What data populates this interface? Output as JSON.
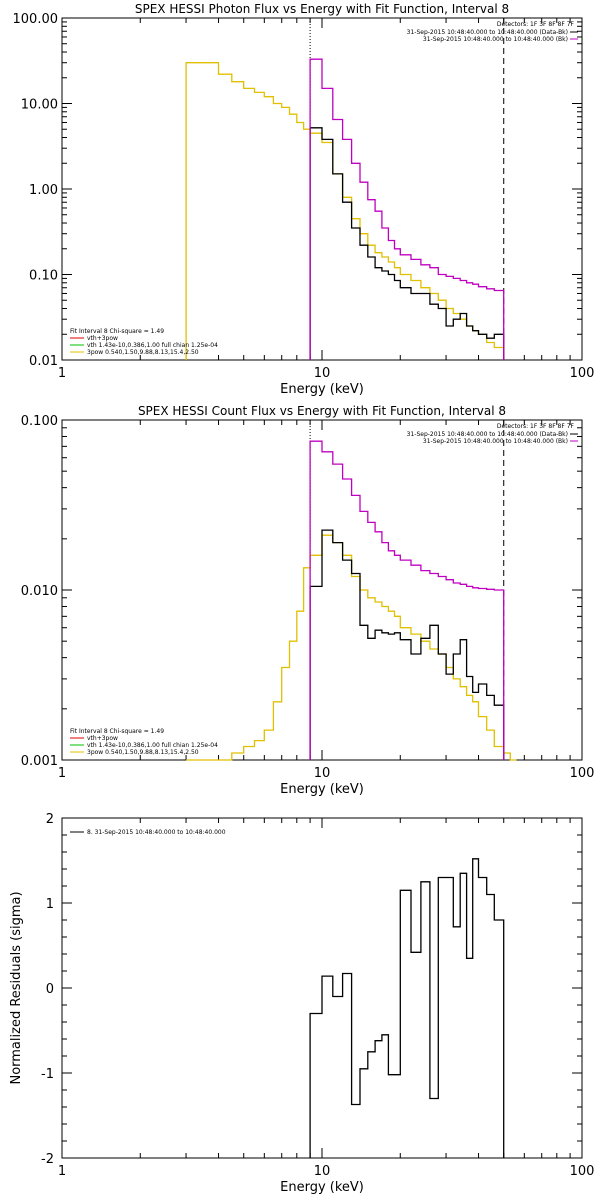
{
  "chart_data": [
    {
      "type": "line",
      "title": "SPEX HESSI Photon Flux vs Energy with Fit Function, Interval 8",
      "xlabel": "Energy (keV)",
      "ylabel": "",
      "xscale": "log",
      "yscale": "log",
      "xlim": [
        1,
        100
      ],
      "ylim": [
        0.01,
        100
      ],
      "xticks": [
        "1",
        "10",
        "100"
      ],
      "yticks": [
        "0.01",
        "0.10",
        "1.00",
        "10.00",
        "100.00"
      ],
      "detectors_label": "Detectors: 1F 3F 8F 8F 7F",
      "legend_right": [
        {
          "text": "31-Sep-2015 10:48:40.000 to 10:48:40.000 (Data-Bk)",
          "color": "#000000"
        },
        {
          "text": "31-Sep-2015 10:48:40.000 to 10:48:40.000 (Bk)",
          "color": "#c000c0"
        }
      ],
      "legend_left": [
        {
          "text": "Fit Interval 8   Chi-square = 1.49",
          "color": null
        },
        {
          "text": "vth+3pow",
          "color": "#e00000"
        },
        {
          "text": "vth 1.43e-10,0.386,1.00  full chian 1.25e-04",
          "color": "#00c000"
        },
        {
          "text": "3pow 0.540,1.50,9.88,8.13,15.4,2.50",
          "color": "#e0c000"
        }
      ],
      "vlines": [
        {
          "x": 9.0,
          "style": "dotted"
        },
        {
          "x": 50.0,
          "style": "dashed"
        }
      ],
      "series": [
        {
          "color": "#e0c000",
          "edges": [
            3.0,
            3.5,
            4.0,
            4.5,
            5.0,
            5.5,
            6.0,
            6.5,
            7.0,
            7.5,
            8.0,
            8.5,
            9.0,
            10.0,
            11.0,
            12.0,
            13.0,
            14.0,
            15.0,
            16.0,
            17.0,
            18.0,
            19.0,
            20.0,
            22.0,
            24.0,
            26.0,
            28.0,
            30.0,
            32.0,
            34.0,
            36.0,
            38.0,
            40.0,
            43.0,
            46.0,
            50.0
          ],
          "values": [
            30,
            30,
            22,
            18,
            15,
            13.5,
            12,
            10,
            9,
            7.5,
            6,
            5,
            4.5,
            3.5,
            1.5,
            0.8,
            0.45,
            0.3,
            0.22,
            0.18,
            0.16,
            0.14,
            0.12,
            0.1,
            0.085,
            0.07,
            0.06,
            0.05,
            0.04,
            0.035,
            0.03,
            0.025,
            0.022,
            0.02,
            0.016,
            0.014
          ]
        },
        {
          "color": "#000000",
          "edges": [
            9.0,
            10.0,
            11.0,
            12.0,
            13.0,
            14.0,
            15.0,
            16.0,
            17.0,
            18.0,
            19.0,
            20.0,
            22.0,
            24.0,
            26.0,
            28.0,
            30.0,
            32.0,
            34.0,
            36.0,
            38.0,
            40.0,
            43.0,
            46.0,
            50.0
          ],
          "values": [
            5.2,
            3.8,
            1.5,
            0.7,
            0.35,
            0.22,
            0.16,
            0.12,
            0.11,
            0.1,
            0.085,
            0.07,
            0.06,
            0.06,
            0.045,
            0.04,
            0.025,
            0.03,
            0.035,
            0.025,
            0.022,
            0.02,
            0.018,
            0.02
          ]
        },
        {
          "color": "#c000c0",
          "edges": [
            9.0,
            10.0,
            11.0,
            12.0,
            13.0,
            14.0,
            15.0,
            16.0,
            17.0,
            18.0,
            19.0,
            20.0,
            22.0,
            24.0,
            26.0,
            28.0,
            30.0,
            32.0,
            34.0,
            36.0,
            38.0,
            40.0,
            43.0,
            46.0,
            50.0
          ],
          "values": [
            33,
            15,
            6.5,
            3.8,
            2.0,
            1.2,
            0.75,
            0.55,
            0.35,
            0.25,
            0.2,
            0.17,
            0.15,
            0.13,
            0.12,
            0.1,
            0.095,
            0.09,
            0.085,
            0.08,
            0.077,
            0.072,
            0.068,
            0.065
          ]
        }
      ]
    },
    {
      "type": "line",
      "title": "SPEX HESSI Count Flux vs Energy with Fit Function, Interval 8",
      "xlabel": "Energy (keV)",
      "ylabel": "",
      "xscale": "log",
      "yscale": "log",
      "xlim": [
        1,
        100
      ],
      "ylim": [
        0.001,
        0.1
      ],
      "xticks": [
        "1",
        "10",
        "100"
      ],
      "yticks": [
        "0.001",
        "0.010",
        "0.100"
      ],
      "detectors_label": "Detectors: 1F 3F 8F 8F 7F",
      "legend_right": [
        {
          "text": "31-Sep-2015 10:48:40.000 to 10:48:40.000 (Data-Bk)",
          "color": "#000000"
        },
        {
          "text": "31-Sep-2015 10:48:40.000 to 10:48:40.000 (Bk)",
          "color": "#c000c0"
        }
      ],
      "legend_left": [
        {
          "text": "Fit Interval 8   Chi-square = 1.49",
          "color": null
        },
        {
          "text": "vth+3pow",
          "color": "#e00000"
        },
        {
          "text": "vth 1.43e-10,0.386,1.00  full chian 1.25e-04",
          "color": "#00c000"
        },
        {
          "text": "3pow 0.540,1.50,9.88,8.13,15.4,2.50",
          "color": "#e0c000"
        }
      ],
      "vlines": [
        {
          "x": 9.0,
          "style": "dotted"
        },
        {
          "x": 50.0,
          "style": "dashed"
        }
      ],
      "series": [
        {
          "color": "#e0c000",
          "edges": [
            3.0,
            3.5,
            4.0,
            4.5,
            5.0,
            5.5,
            6.0,
            6.5,
            7.0,
            7.5,
            8.0,
            8.5,
            9.0,
            10.0,
            11.0,
            12.0,
            13.0,
            14.0,
            15.0,
            16.0,
            17.0,
            18.0,
            19.0,
            20.0,
            22.0,
            24.0,
            26.0,
            28.0,
            30.0,
            32.0,
            34.0,
            36.0,
            38.0,
            40.0,
            43.0,
            46.0,
            50.0,
            53.0,
            56.0
          ],
          "values": [
            0.001,
            0.001,
            0.001,
            0.0011,
            0.0012,
            0.0013,
            0.0015,
            0.0022,
            0.0035,
            0.005,
            0.0075,
            0.0135,
            0.016,
            0.021,
            0.019,
            0.016,
            0.012,
            0.01,
            0.009,
            0.0085,
            0.008,
            0.0075,
            0.007,
            0.006,
            0.0055,
            0.005,
            0.0045,
            0.0042,
            0.0035,
            0.003,
            0.0027,
            0.0024,
            0.0022,
            0.0018,
            0.0015,
            0.0012,
            0.0011,
            0.001
          ]
        },
        {
          "color": "#000000",
          "edges": [
            9.0,
            10.0,
            11.0,
            12.0,
            13.0,
            14.0,
            15.0,
            16.0,
            17.0,
            18.0,
            19.0,
            20.0,
            22.0,
            24.0,
            26.0,
            28.0,
            30.0,
            32.0,
            34.0,
            36.0,
            38.0,
            40.0,
            43.0,
            46.0,
            50.0
          ],
          "values": [
            0.0105,
            0.0225,
            0.019,
            0.015,
            0.0125,
            0.0062,
            0.0052,
            0.0058,
            0.0056,
            0.0055,
            0.0056,
            0.0051,
            0.0042,
            0.0052,
            0.0062,
            0.0042,
            0.0032,
            0.0042,
            0.0051,
            0.0031,
            0.0025,
            0.0028,
            0.0024,
            0.0021
          ]
        },
        {
          "color": "#c000c0",
          "edges": [
            9.0,
            10.0,
            11.0,
            12.0,
            13.0,
            14.0,
            15.0,
            16.0,
            17.0,
            18.0,
            19.0,
            20.0,
            22.0,
            24.0,
            26.0,
            28.0,
            30.0,
            32.0,
            34.0,
            36.0,
            38.0,
            40.0,
            43.0,
            46.0,
            50.0
          ],
          "values": [
            0.075,
            0.065,
            0.055,
            0.045,
            0.036,
            0.029,
            0.025,
            0.022,
            0.019,
            0.017,
            0.016,
            0.015,
            0.014,
            0.013,
            0.0125,
            0.012,
            0.0115,
            0.011,
            0.0108,
            0.0105,
            0.0103,
            0.0102,
            0.0101,
            0.01
          ]
        }
      ]
    },
    {
      "type": "line",
      "title": "",
      "xlabel": "Energy (keV)",
      "ylabel": "Normalized Residuals (sigma)",
      "xscale": "log",
      "yscale": "linear",
      "xlim": [
        1,
        100
      ],
      "ylim": [
        -2,
        2
      ],
      "xticks": [
        "1",
        "10",
        "100"
      ],
      "yticks": [
        "-2",
        "-1",
        "0",
        "1",
        "2"
      ],
      "legend_left": [
        {
          "text": "8. 31-Sep-2015 10:48:40.000 to 10:48:40.000",
          "color": "#000000"
        }
      ],
      "series": [
        {
          "color": "#000000",
          "edges": [
            9.0,
            10.0,
            11.0,
            12.0,
            13.0,
            14.0,
            15.0,
            16.0,
            17.0,
            18.0,
            19.0,
            20.0,
            22.0,
            24.0,
            26.0,
            28.0,
            30.0,
            32.0,
            34.0,
            36.0,
            38.0,
            40.0,
            43.0,
            46.0,
            50.0
          ],
          "values": [
            -0.3,
            0.14,
            -0.1,
            0.17,
            -1.37,
            -0.95,
            -0.75,
            -0.62,
            -0.55,
            -1.02,
            -1.02,
            1.15,
            0.42,
            1.25,
            -1.3,
            1.3,
            1.3,
            0.72,
            1.35,
            0.35,
            1.52,
            1.3,
            1.1,
            0.8
          ]
        }
      ]
    }
  ]
}
